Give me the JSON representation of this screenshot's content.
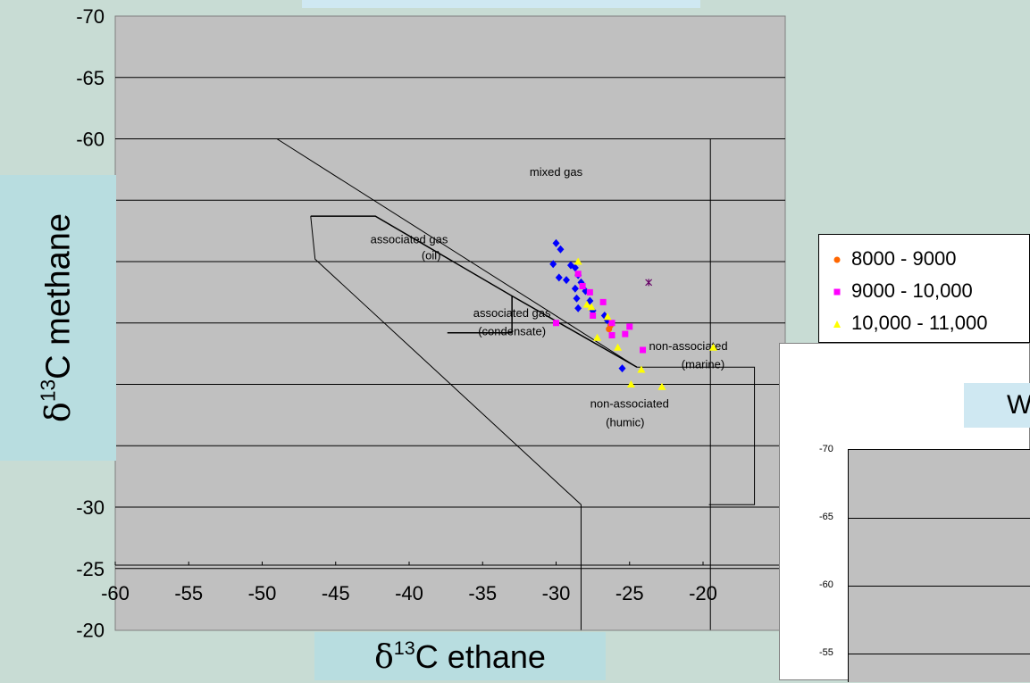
{
  "chart_data": {
    "type": "scatter",
    "xlabel_prefix": "δ",
    "xlabel_sup": "13",
    "xlabel_text": "C  ethane",
    "ylabel_prefix": "δ",
    "ylabel_sup": "13",
    "ylabel_text": "C  methane",
    "xlim": [
      -60,
      -15
    ],
    "ylim": [
      -70,
      -20
    ],
    "x_ticks": [
      "-60",
      "-55",
      "-50",
      "-45",
      "-40",
      "-35",
      "-30",
      "-25",
      "-20"
    ],
    "y_ticks": [
      "-70",
      "-65",
      "-60",
      "-30",
      "-25",
      "-20"
    ],
    "grid": true,
    "region_labels": [
      {
        "text": "mixed gas",
        "x": -30,
        "y": -57
      },
      {
        "text": "associated gas",
        "x": -40,
        "y": -51.5
      },
      {
        "text": "(oil)",
        "x": -38.5,
        "y": -50.2
      },
      {
        "text": "associated gas",
        "x": -33,
        "y": -45.5
      },
      {
        "text": "(condensate)",
        "x": -33,
        "y": -44
      },
      {
        "text": "non-associated",
        "x": -21,
        "y": -42.8
      },
      {
        "text": "(marine)",
        "x": -20,
        "y": -41.3
      },
      {
        "text": "non-associated",
        "x": -25,
        "y": -38.1
      },
      {
        "text": "(humic)",
        "x": -25.3,
        "y": -36.6
      }
    ],
    "series": [
      {
        "name": "",
        "color": "#0000ff",
        "marker": "diamond",
        "points": [
          [
            -30,
            -51.5
          ],
          [
            -29.7,
            -51
          ],
          [
            -30.2,
            -49.8
          ],
          [
            -29.8,
            -48.7
          ],
          [
            -29.3,
            -48.5
          ],
          [
            -29,
            -49.7
          ],
          [
            -28.7,
            -49.5
          ],
          [
            -28.5,
            -48.9
          ],
          [
            -28.3,
            -48.3
          ],
          [
            -28.7,
            -47.8
          ],
          [
            -28,
            -47.6
          ],
          [
            -28.6,
            -47
          ],
          [
            -27.7,
            -46.8
          ],
          [
            -28.5,
            -46.2
          ],
          [
            -27.5,
            -46
          ],
          [
            -26.7,
            -45.6
          ],
          [
            -26.5,
            -45.2
          ],
          [
            -25.5,
            -41.3
          ]
        ]
      },
      {
        "name": "8000 - 9000",
        "color": "#ff6600",
        "marker": "circle",
        "points": [
          [
            -26.4,
            -44.5
          ],
          [
            -26.3,
            -44.8
          ]
        ]
      },
      {
        "name": "9000 - 10,000",
        "color": "#ff00ff",
        "marker": "square",
        "points": [
          [
            -28.5,
            -49
          ],
          [
            -28.2,
            -48
          ],
          [
            -27.7,
            -47.5
          ],
          [
            -26.8,
            -46.7
          ],
          [
            -27.5,
            -45.6
          ],
          [
            -30,
            -45
          ],
          [
            -26.2,
            -45
          ],
          [
            -25,
            -44.7
          ],
          [
            -26.2,
            -44
          ],
          [
            -25.3,
            -44.1
          ],
          [
            -24.1,
            -42.8
          ]
        ]
      },
      {
        "name": "10,000 - 11,000",
        "color": "#ffff00",
        "marker": "triangle",
        "points": [
          [
            -28.5,
            -50
          ],
          [
            -27.9,
            -46.5
          ],
          [
            -27.6,
            -46.3
          ],
          [
            -27.2,
            -43.8
          ],
          [
            -26.5,
            -45.5
          ],
          [
            -25.8,
            -43
          ],
          [
            -24.2,
            -41.2
          ],
          [
            -24.9,
            -40
          ],
          [
            -22.8,
            -39.8
          ],
          [
            -19.3,
            -43
          ]
        ]
      },
      {
        "name": "",
        "color": "#660066",
        "marker": "x",
        "points": [
          [
            -23.7,
            -48.3
          ]
        ]
      }
    ]
  },
  "legend_items": [
    "8000 - 9000",
    "9000 - 10,000",
    "10,000 - 11,000"
  ],
  "panel2": {
    "title_fragment": "W",
    "y_ticks": [
      "-70",
      "-65",
      "-60",
      "-55"
    ]
  }
}
